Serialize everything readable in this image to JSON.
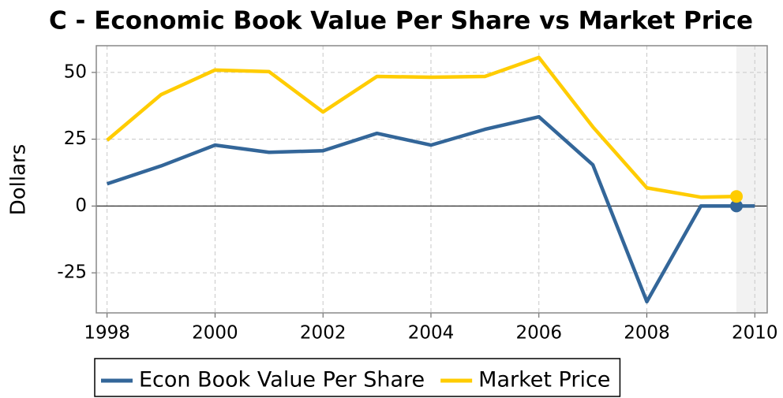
{
  "chart_data": {
    "type": "line",
    "title": "C - Economic Book Value Per Share vs Market Price",
    "y_label": "Dollars",
    "xlim": [
      1997.8,
      2010.23
    ],
    "xticks": [
      1998,
      2000,
      2002,
      2004,
      2006,
      2008,
      2010
    ],
    "ylim": [
      -40,
      60
    ],
    "yticks": [
      -25,
      0,
      25,
      50
    ],
    "grid": true,
    "highlight_x": 2009.66,
    "series": [
      {
        "name": "Econ Book Value Per Share",
        "color": "#336699",
        "x": [
          1998,
          1999,
          2000,
          2001,
          2002,
          2003,
          2004,
          2005,
          2006,
          2007,
          2008,
          2009,
          2009.66,
          2010
        ],
        "values": [
          8.3,
          15,
          22.8,
          20.1,
          20.7,
          27.2,
          22.8,
          28.7,
          33.4,
          15.4,
          -35.8,
          0,
          0,
          0
        ]
      },
      {
        "name": "Market Price",
        "color": "#ffcc00",
        "x": [
          1998,
          1999,
          2000,
          2001,
          2002,
          2003,
          2004,
          2005,
          2006,
          2007,
          2008,
          2009,
          2009.66
        ],
        "values": [
          24.6,
          41.7,
          50.9,
          50.3,
          35.2,
          48.5,
          48.2,
          48.5,
          55.6,
          29.6,
          6.8,
          3.3,
          3.6
        ]
      }
    ]
  }
}
